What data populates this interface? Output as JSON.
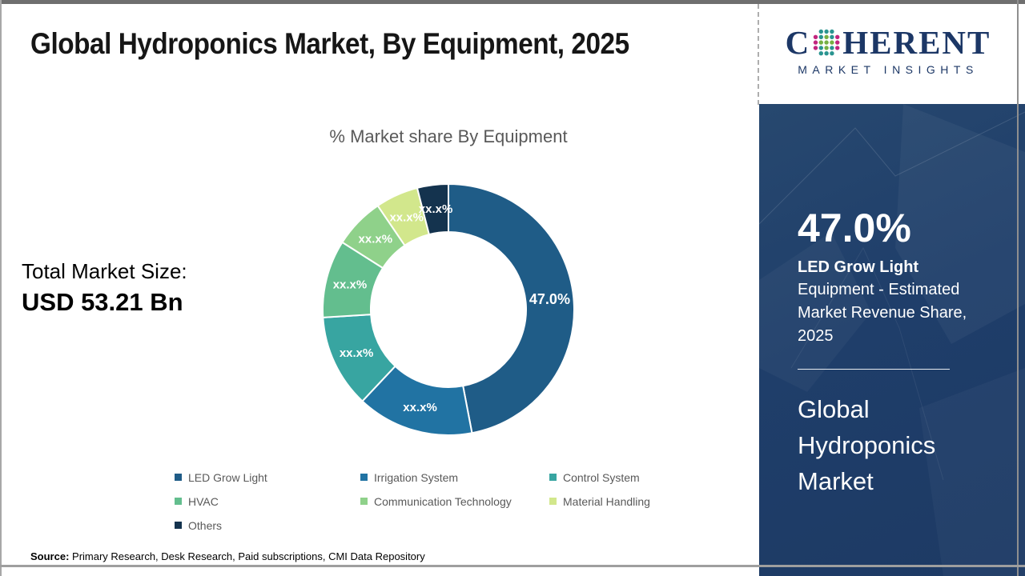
{
  "header": {
    "title": "Global Hydroponics Market, By Equipment, 2025"
  },
  "logo": {
    "brand_c": "C",
    "brand_rest": "HERENT",
    "subtitle": "MARKET INSIGHTS",
    "brand_color": "#1c3766",
    "dot_colors": {
      "magenta": "#c2267e",
      "teal": "#2a9490",
      "green": "#76b043"
    }
  },
  "left_panel": {
    "total_label": "Total Market Size:",
    "total_value": "USD 53.21 Bn"
  },
  "chart_data": {
    "type": "pie",
    "subtype": "donut",
    "title": "% Market share By Equipment",
    "start_angle_deg": 0,
    "direction": "clockwise",
    "values_masked_as": "xx.x%",
    "segments": [
      {
        "name": "LED Grow Light",
        "value": 47.0,
        "label": "47.0%",
        "color": "#1F5C87"
      },
      {
        "name": "Irrigation System",
        "value": 15.0,
        "label": "xx.x%",
        "color": "#2173A3"
      },
      {
        "name": "Control System",
        "value": 12.0,
        "label": "xx.x%",
        "color": "#38A5A1"
      },
      {
        "name": "HVAC",
        "value": 10.0,
        "label": "xx.x%",
        "color": "#63BE8E"
      },
      {
        "name": "Communication Technology",
        "value": 6.5,
        "label": "xx.x%",
        "color": "#8FD18A"
      },
      {
        "name": "Material Handling",
        "value": 5.5,
        "label": "xx.x%",
        "color": "#D2E78C"
      },
      {
        "name": "Others",
        "value": 4.0,
        "label": "xx.x%",
        "color": "#14334E"
      }
    ],
    "legend_position": "bottom"
  },
  "sidebar": {
    "stat_value": "47.0%",
    "stat_title": "LED Grow Light",
    "stat_desc": "Equipment - Estimated Market Revenue Share, 2025",
    "panel_title": "Global Hydroponics Market",
    "panel_color": "#1f3e6a"
  },
  "footer": {
    "source_label": "Source:",
    "source_text": "Primary Research, Desk Research, Paid subscriptions, CMI Data Repository"
  }
}
